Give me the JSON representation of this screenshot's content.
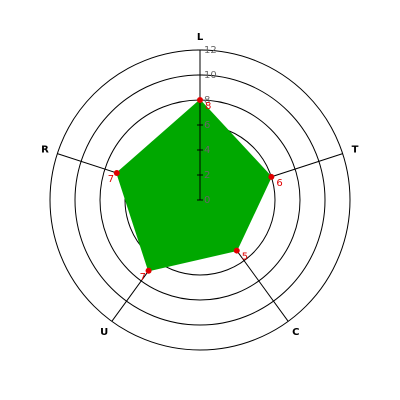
{
  "chart_data": {
    "type": "radar",
    "categories": [
      "L",
      "T",
      "C",
      "U",
      "R"
    ],
    "values": [
      8,
      6,
      5,
      7,
      7
    ],
    "color": "#00a800",
    "marker_color": "#e00000",
    "rlim": [
      0,
      12
    ],
    "rticks": [
      0,
      2,
      4,
      6,
      8,
      10,
      12
    ],
    "grid": true
  }
}
